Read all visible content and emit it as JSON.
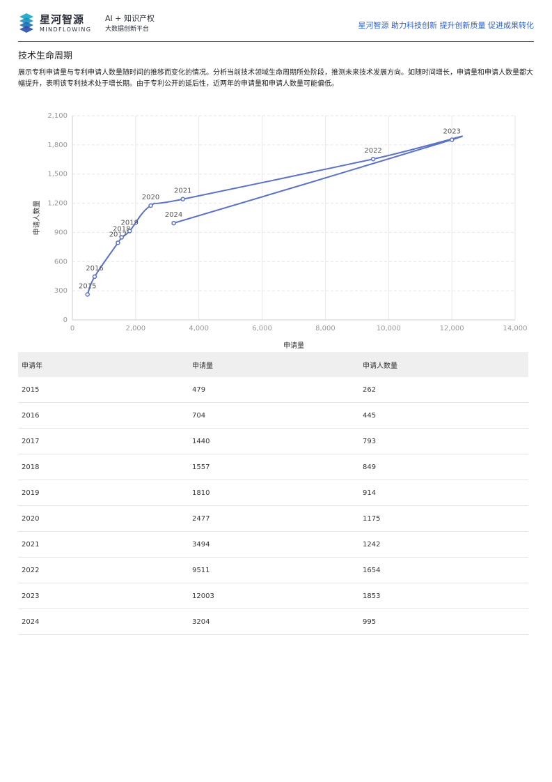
{
  "header": {
    "brand_cn": "星河智源",
    "brand_en": "MINDFLOWING",
    "tagline_1": "AI + 知识产权",
    "tagline_2": "大数据创新平台",
    "slogan": "星河智源 助力科技创新 提升创新质量 促进成果转化",
    "logo_icon": "mindflowing-logo-icon"
  },
  "section": {
    "title": "技术生命周期",
    "description": "展示专利申请量与专利申请人数量随时间的推移而变化的情况。分析当前技术领域生命周期所处阶段，推测未来技术发展方向。如随时间增长，申请量和申请人数量都大幅提升，表明该专利技术处于增长期。由于专利公开的延后性，近两年的申请量和申请人数量可能偏低。"
  },
  "chart_data": {
    "type": "line",
    "xlabel": "申请量",
    "ylabel": "申请人数量",
    "xlim": [
      0,
      14000
    ],
    "ylim": [
      0,
      2100
    ],
    "xticks": [
      "0",
      "2,000",
      "4,000",
      "6,000",
      "8,000",
      "10,000",
      "12,000",
      "14,000"
    ],
    "yticks": [
      "0",
      "300",
      "600",
      "900",
      "1,200",
      "1,500",
      "1,800",
      "2,100"
    ],
    "grid": true,
    "color": "#5b72c6",
    "points": [
      {
        "label": "2015",
        "x": 479,
        "y": 262
      },
      {
        "label": "2016",
        "x": 704,
        "y": 445
      },
      {
        "label": "2017",
        "x": 1440,
        "y": 793
      },
      {
        "label": "2018",
        "x": 1557,
        "y": 849
      },
      {
        "label": "2019",
        "x": 1810,
        "y": 914
      },
      {
        "label": "2020",
        "x": 2477,
        "y": 1175
      },
      {
        "label": "2021",
        "x": 3494,
        "y": 1242
      },
      {
        "label": "2022",
        "x": 9511,
        "y": 1654
      },
      {
        "label": "2023",
        "x": 12003,
        "y": 1853
      },
      {
        "label": "2024",
        "x": 3204,
        "y": 995
      }
    ]
  },
  "table": {
    "headers": [
      "申请年",
      "申请量",
      "申请人数量"
    ],
    "rows": [
      [
        "2015",
        "479",
        "262"
      ],
      [
        "2016",
        "704",
        "445"
      ],
      [
        "2017",
        "1440",
        "793"
      ],
      [
        "2018",
        "1557",
        "849"
      ],
      [
        "2019",
        "1810",
        "914"
      ],
      [
        "2020",
        "2477",
        "1175"
      ],
      [
        "2021",
        "3494",
        "1242"
      ],
      [
        "2022",
        "9511",
        "1654"
      ],
      [
        "2023",
        "12003",
        "1853"
      ],
      [
        "2024",
        "3204",
        "995"
      ]
    ]
  }
}
